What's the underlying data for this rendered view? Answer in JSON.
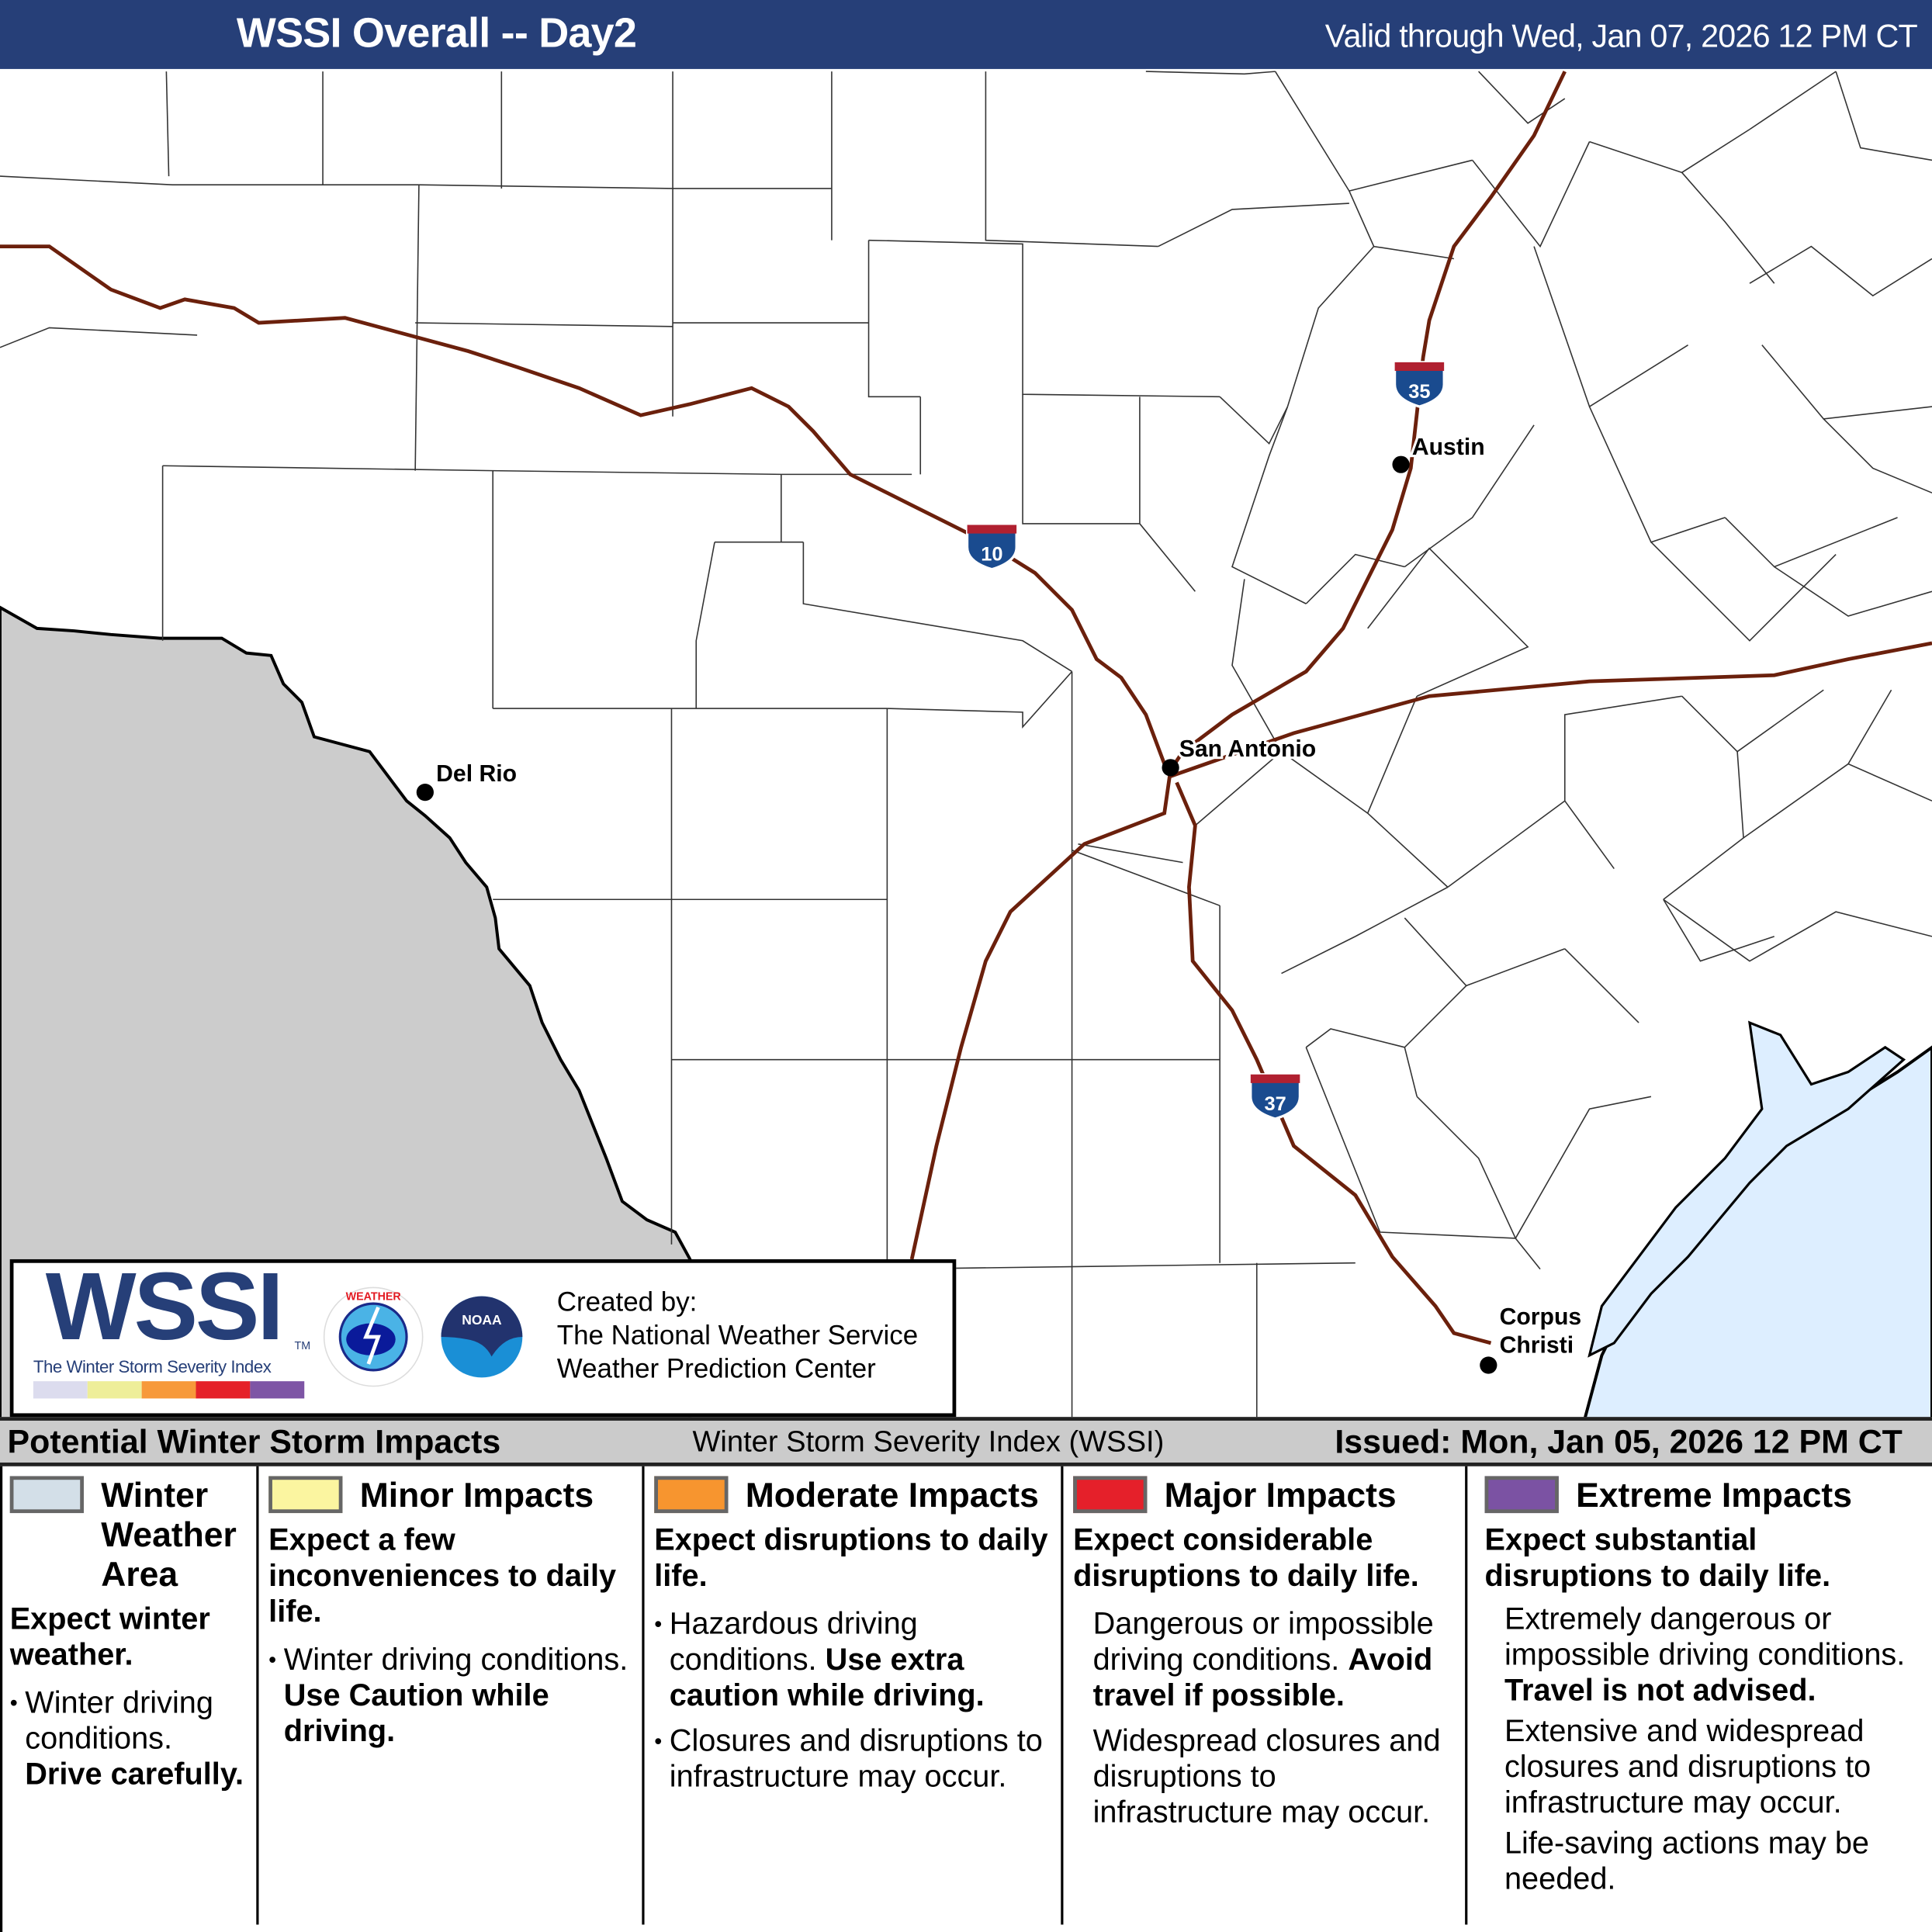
{
  "header": {
    "title": "WSSI Overall -- Day2",
    "valid": "Valid through Wed, Jan 07, 2026 12 PM CT"
  },
  "map": {
    "colors": {
      "mexico": "#cccccc",
      "gulf": "#ddeeff",
      "highway": "#6b200c",
      "county_line": "#333333"
    },
    "cities": [
      {
        "name": "Austin"
      },
      {
        "name": "San Antonio"
      },
      {
        "name": "Del Rio"
      },
      {
        "name": "Corpus",
        "name2": "Christi"
      }
    ],
    "interstates": [
      {
        "number": "10"
      },
      {
        "number": "35"
      },
      {
        "number": "37"
      }
    ]
  },
  "logo": {
    "wssi": "WSSI",
    "tm": "TM",
    "tagline": "The Winter Storm Severity Index",
    "bar_colors": [
      "#dcdcee",
      "#eeee99",
      "#f7993a",
      "#e52129",
      "#7e55a5"
    ],
    "created_by": "Created by:",
    "org1": "The National Weather Service",
    "org2": "Weather Prediction Center",
    "nws_logo": "NATIONAL WEATHER SERVICE",
    "noaa_logo": "NOAA"
  },
  "legend": {
    "left": "Potential Winter Storm Impacts",
    "center": "Winter Storm Severity Index (WSSI)",
    "right": "Issued: Mon, Jan 05, 2026 12 PM CT",
    "categories": [
      {
        "color": "#d3dfe8",
        "title1": "Winter",
        "title2": "Weather",
        "title3": "Area",
        "sub": "Expect winter weather.",
        "t1": "Winter driving conditions.",
        "t1b": "Drive carefully."
      },
      {
        "color": "#fbf5a0",
        "title": "Minor Impacts",
        "sub": "Expect a few inconveniences to daily life.",
        "t1": "Winter driving conditions.",
        "t1b": "Use Caution while driving."
      },
      {
        "color": "#f7952f",
        "title": "Moderate Impacts",
        "sub": "Expect disruptions to daily life.",
        "t1": "Hazardous driving conditions.",
        "t1b": "Use extra caution while driving.",
        "t2": "Closures and disruptions to infrastructure may occur."
      },
      {
        "color": "#e5202a",
        "title": "Major Impacts",
        "sub": "Expect considerable disruptions to daily life.",
        "t1": "Dangerous or impossible driving conditions.",
        "t1b": "Avoid travel if possible.",
        "t2": "Widespread closures and disruptions to infrastructure may occur."
      },
      {
        "color": "#7b52a3",
        "title": "Extreme Impacts",
        "sub": "Expect substantial disruptions to daily life.",
        "t1": "Extremely dangerous or impossible driving conditions.",
        "t1b": "Travel is not advised.",
        "t2": "Extensive and widespread closures and disruptions to infrastructure may occur.",
        "t3": "Life-saving actions may be needed."
      }
    ]
  }
}
